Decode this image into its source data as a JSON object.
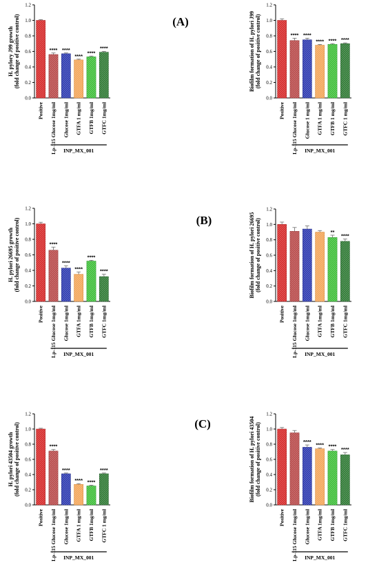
{
  "chart_data": [
    {
      "type": "bar",
      "panel": "(A)",
      "ylim": [
        0,
        1.2
      ],
      "yticks": [
        "0.0",
        "0.2",
        "0.4",
        "0.6",
        "0.8",
        "1.0",
        "1.2"
      ],
      "ylabel_lines": [
        "H. pylory J99 growth",
        "(fold change of positive control)"
      ],
      "categories": [
        "Positive",
        "Lp-115 Glucose 1mg/ml",
        "Glucose 1mg/ml",
        "GTFA 1 mg/ml",
        "GTFB 1mg/ml",
        "GTFC 1mg/ml"
      ],
      "values": [
        1.0,
        0.56,
        0.57,
        0.49,
        0.53,
        0.59
      ],
      "errors": [
        0.01,
        0.02,
        0.01,
        0.01,
        0.01,
        0.01
      ],
      "significance": [
        "",
        "****",
        "****",
        "****",
        "****",
        "****"
      ],
      "group_label": "INP_MX_001"
    },
    {
      "type": "bar",
      "panel": "",
      "ylim": [
        0,
        1.2
      ],
      "yticks": [
        "0.0",
        "0.2",
        "0.4",
        "0.6",
        "0.8",
        "1.0",
        "1.2"
      ],
      "ylabel_lines": [
        "Biofilm formation of H. pylori J99",
        "(fold change of positive control)"
      ],
      "categories": [
        "Positive",
        "Lp-115 Glucose 1mg/ml",
        "Glucose 1 mg/ml",
        "GTFA 1 mg/ml",
        "GTFB 1 mg/ml",
        "GTFC 1 mg/ml"
      ],
      "values": [
        1.0,
        0.74,
        0.75,
        0.68,
        0.69,
        0.7
      ],
      "errors": [
        0.02,
        0.03,
        0.02,
        0.01,
        0.01,
        0.01
      ],
      "significance": [
        "",
        "****",
        "****",
        "****",
        "****",
        "****"
      ],
      "group_label": "INP_MX_001"
    },
    {
      "type": "bar",
      "panel": "(B)",
      "ylim": [
        0,
        1.2
      ],
      "yticks": [
        "0.0",
        "0.2",
        "0.4",
        "0.6",
        "0.8",
        "1.0",
        "1.2"
      ],
      "ylabel_lines": [
        "H. pylori 26695 growth",
        "(fold change of positive control)"
      ],
      "categories": [
        "Positive",
        "Lp-115 Glucose 1mg/ml",
        "Glucose 1mg/ml",
        "GTFA 1mg/ml",
        "GTFB 1mg/ml",
        "GTFC 1mg/ml"
      ],
      "values": [
        1.0,
        0.66,
        0.43,
        0.35,
        0.52,
        0.32
      ],
      "errors": [
        0.02,
        0.04,
        0.03,
        0.03,
        0.01,
        0.03
      ],
      "significance": [
        "",
        "****",
        "****",
        "****",
        "****",
        "****"
      ],
      "group_label": "INP_MX_001"
    },
    {
      "type": "bar",
      "panel": "",
      "ylim": [
        0,
        1.2
      ],
      "yticks": [
        "0.0",
        "0.2",
        "0.4",
        "0.6",
        "0.8",
        "1.0",
        "1.2"
      ],
      "ylabel_lines": [
        "Biofilm formation of H. pylori 26695",
        "(fold change of positive control)"
      ],
      "categories": [
        "Positive",
        "Lp-115 Glucose 1mg/ml",
        "Glucose 1mg/ml",
        "GTFA 1mg/ml",
        "GTFB 1mg/ml",
        "GTFC 1mg/ml"
      ],
      "values": [
        1.0,
        0.91,
        0.94,
        0.9,
        0.83,
        0.78
      ],
      "errors": [
        0.03,
        0.05,
        0.04,
        0.02,
        0.03,
        0.03
      ],
      "significance": [
        "",
        "",
        "",
        "",
        "**",
        "****"
      ],
      "group_label": "INP_MX_001"
    },
    {
      "type": "bar",
      "panel": "(C)",
      "ylim": [
        0,
        1.2
      ],
      "yticks": [
        "0.0",
        "0.2",
        "0.4",
        "0.6",
        "0.8",
        "1.0",
        "1.2"
      ],
      "ylabel_lines": [
        "H. pylori 43504 growth",
        "(fold change of positive control)"
      ],
      "categories": [
        "Positive",
        "Lp-115 Glucose 1mg/ml",
        "Glucose 1mg/ml",
        "GTFA 1 mg/ml",
        "GTFB 1mg/ml",
        "GTFC 1 mg/ml"
      ],
      "values": [
        1.0,
        0.71,
        0.41,
        0.27,
        0.25,
        0.41
      ],
      "errors": [
        0.01,
        0.02,
        0.01,
        0.01,
        0.01,
        0.01
      ],
      "significance": [
        "",
        "****",
        "****",
        "****",
        "****",
        "****"
      ],
      "group_label": "INP_MX_001"
    },
    {
      "type": "bar",
      "panel": "",
      "ylim": [
        0,
        1.2
      ],
      "yticks": [
        "0.0",
        "0.2",
        "0.4",
        "0.6",
        "0.8",
        "1.0",
        "1.2"
      ],
      "ylabel_lines": [
        "Biofilm formation of H. pylori 43504",
        "(fold change of positive control)"
      ],
      "categories": [
        "Positive",
        "Lp-115 Glucose 1mg/ml",
        "Glucose 1mg/ml",
        "GTFA 1mg/ml",
        "GTFB 1mg/ml",
        "GTFC 1mg/ml"
      ],
      "values": [
        1.0,
        0.95,
        0.76,
        0.74,
        0.71,
        0.66
      ],
      "errors": [
        0.02,
        0.03,
        0.03,
        0.01,
        0.02,
        0.03
      ],
      "significance": [
        "",
        "",
        "****",
        "****",
        "****",
        "****"
      ],
      "group_label": "INP_MX_001"
    }
  ],
  "colors": {
    "bar_fills": [
      "#d62b2b",
      "#b84a4a",
      "#2e3bb0",
      "#f3a65a",
      "#3fbf3a",
      "#2f7a34"
    ],
    "bar_edges": [
      "#a01010",
      "#8a2424",
      "#1a2580",
      "#d07f2a",
      "#1f8f1f",
      "#1a5220"
    ],
    "error_bar": "#6b6b6b",
    "axis": "#000000"
  }
}
